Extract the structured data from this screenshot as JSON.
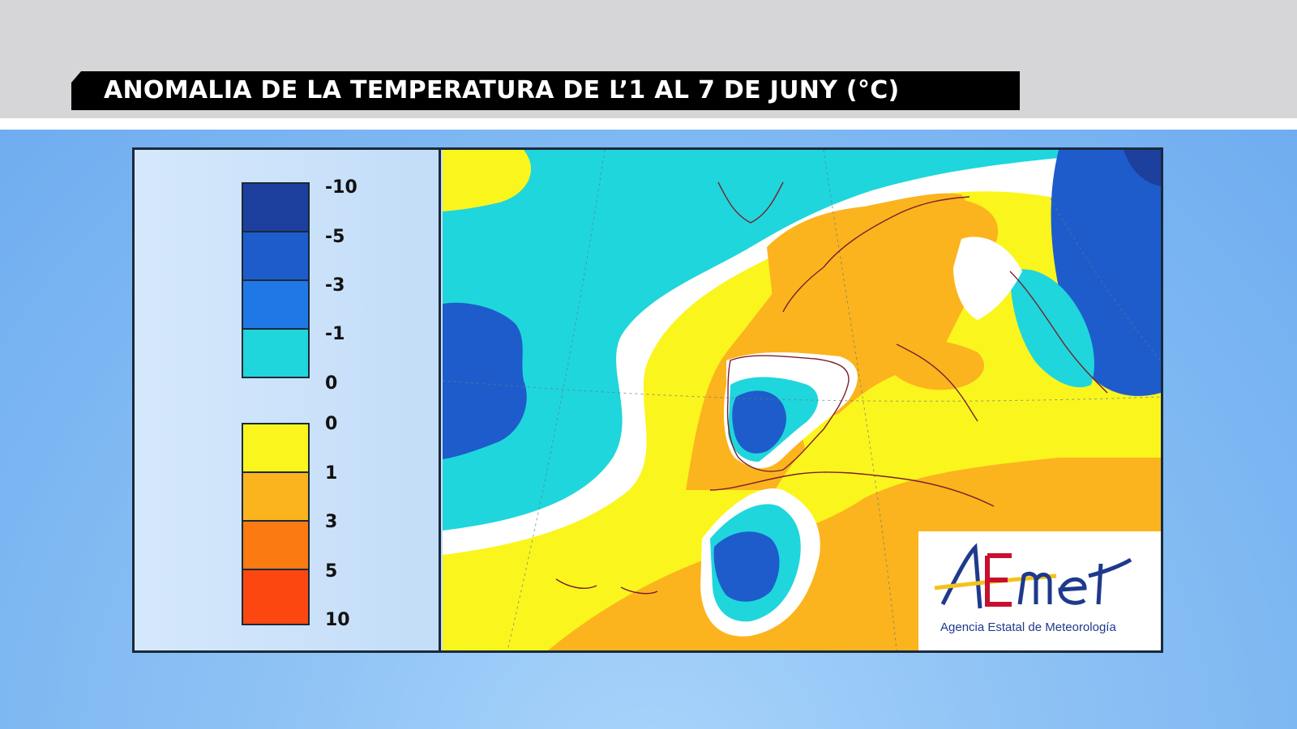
{
  "title": "ANOMALIA DE LA TEMPERATURA DE L’1 AL 7 DE JUNY (°C)",
  "legend": {
    "cold": {
      "labels": [
        "-10",
        "-5",
        "-3",
        "-1",
        "0"
      ],
      "colors": [
        "#1d3f9e",
        "#1e5ccc",
        "#1f78e6",
        "#1fd6dc"
      ]
    },
    "warm": {
      "labels": [
        "0",
        "1",
        "3",
        "5",
        "10"
      ],
      "colors": [
        "#fbf51e",
        "#fbb41e",
        "#fb7a12",
        "#fc4710"
      ]
    }
  },
  "map_colors": {
    "ocean_cyan": "#1fd6dc",
    "white_band": "#ffffff",
    "yellow": "#fbf51e",
    "orange": "#fbb41e",
    "blue": "#1e5ccc",
    "dark_blue": "#1d3f9e",
    "coast": "#7a1f2e"
  },
  "logo": {
    "name": "AEMet",
    "subtitle": "Agencia Estatal de Meteorología"
  }
}
